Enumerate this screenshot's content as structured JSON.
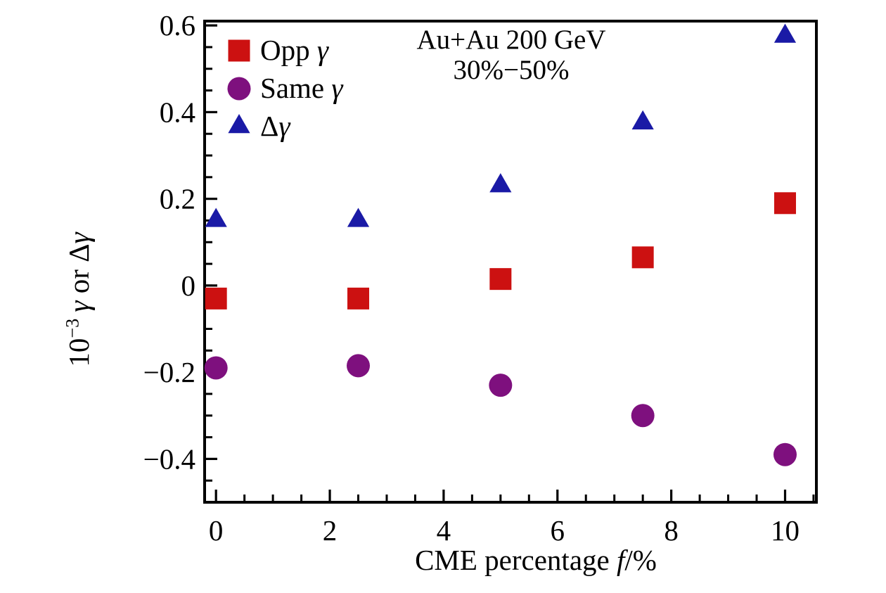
{
  "figure": {
    "annotation": {
      "line1": "Au+Au 200 GeV",
      "line2": "30%−50%"
    }
  },
  "axes": {
    "y_label": {
      "base": "10",
      "exponent": "−3",
      "gamma1": "γ",
      "mid": " or Δ",
      "gamma2": "γ"
    },
    "x_label": {
      "prefix": "CME percentage ",
      "italic": "f",
      "suffix": "/%"
    }
  },
  "legend": {
    "items": [
      {
        "text": "Opp ",
        "math": "γ",
        "marker": "square",
        "color": "#cc1111"
      },
      {
        "text": "Same ",
        "math": "γ",
        "marker": "circle",
        "color": "#7e107e"
      },
      {
        "text": "Δ",
        "math": "γ",
        "marker": "triangle_up",
        "color": "#1a1aa6"
      }
    ]
  },
  "chart_data": {
    "type": "scatter",
    "title": "Au+Au 200 GeV 30%−50%",
    "xlabel": "CME percentage f/%",
    "ylabel": "10^−3 γ or Δγ",
    "x": [
      0,
      2.5,
      5,
      7.5,
      10
    ],
    "series": [
      {
        "name": "Opp γ",
        "marker": "square",
        "color": "#cc1111",
        "values": [
          -0.03,
          -0.03,
          0.015,
          0.065,
          0.19
        ]
      },
      {
        "name": "Same γ",
        "marker": "circle",
        "color": "#7e107e",
        "values": [
          -0.19,
          -0.185,
          -0.23,
          -0.3,
          -0.39
        ]
      },
      {
        "name": "Δγ",
        "marker": "triangle_up",
        "color": "#1a1aa6",
        "values": [
          0.15,
          0.15,
          0.23,
          0.375,
          0.575
        ]
      }
    ],
    "xlim": [
      -0.2,
      10.55
    ],
    "ylim": [
      -0.5,
      0.61
    ],
    "xticks": {
      "values": [
        0,
        2,
        4,
        6,
        8,
        10
      ],
      "labels": [
        "0",
        "2",
        "4",
        "6",
        "8",
        "10"
      ],
      "minor_step": 0.5
    },
    "yticks": {
      "values": [
        0.6,
        0.4,
        0.2,
        0,
        -0.2,
        -0.4
      ],
      "labels": [
        "0.6",
        "0.4",
        "0.2",
        "0",
        "−0.2",
        "−0.4"
      ],
      "minor_step": 0.05
    },
    "grid": false,
    "legend_position": "upper left",
    "marker_edge": "none"
  }
}
